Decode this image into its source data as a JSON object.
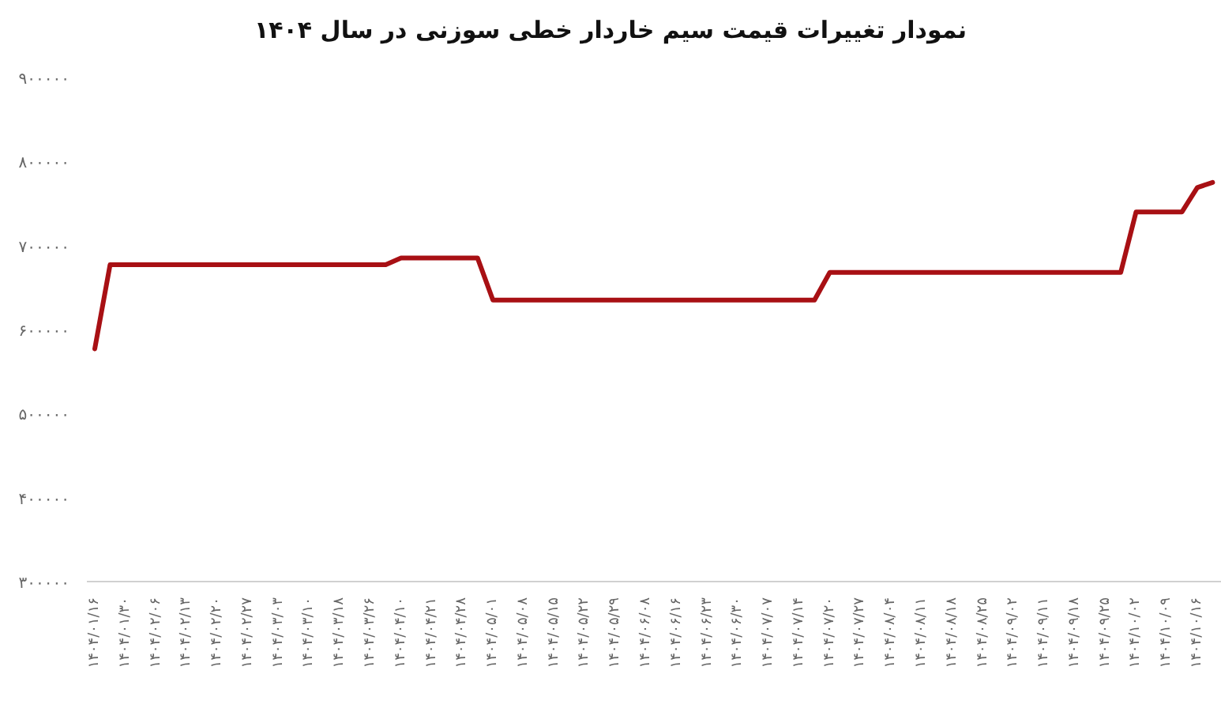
{
  "chart_data": {
    "type": "line",
    "title": "نمودار تغییرات قیمت سیم خاردار خطی سوزنی در سال ۱۴۰۴",
    "categories": [
      "۱۴۰۴/۰۱/۱۶",
      null,
      "۱۴۰۴/۰۱/۳۰",
      null,
      "۱۴۰۴/۰۲/۰۶",
      null,
      "۱۴۰۴/۰۲/۱۳",
      null,
      "۱۴۰۴/۰۲/۲۰",
      null,
      "۱۴۰۴/۰۲/۲۷",
      null,
      "۱۴۰۴/۰۳/۰۳",
      null,
      "۱۴۰۴/۰۳/۱۰",
      null,
      "۱۴۰۴/۰۳/۱۸",
      null,
      "۱۴۰۴/۰۳/۲۶",
      null,
      "۱۴۰۴/۰۴/۱۰",
      null,
      "۱۴۰۴/۰۴/۲۱",
      null,
      "۱۴۰۴/۰۴/۲۸",
      null,
      "۱۴۰۴/۰۵/۰۱",
      null,
      "۱۴۰۴/۰۵/۰۸",
      null,
      "۱۴۰۴/۰۵/۱۵",
      null,
      "۱۴۰۴/۰۵/۲۲",
      null,
      "۱۴۰۴/۰۵/۲۹",
      null,
      "۱۴۰۴/۰۶/۰۸",
      null,
      "۱۴۰۴/۰۶/۱۶",
      null,
      "۱۴۰۴/۰۶/۲۳",
      null,
      "۱۴۰۴/۰۶/۳۰",
      null,
      "۱۴۰۴/۰۷/۰۷",
      null,
      "۱۴۰۴/۰۷/۱۴",
      null,
      "۱۴۰۴/۰۷/۲۰",
      null,
      "۱۴۰۴/۰۷/۲۷",
      null,
      "۱۴۰۴/۰۸/۰۴",
      null,
      "۱۴۰۴/۰۸/۱۱",
      null,
      "۱۴۰۴/۰۸/۱۸",
      null,
      "۱۴۰۴/۰۸/۲۵",
      null,
      "۱۴۰۴/۰۹/۰۲",
      null,
      "۱۴۰۴/۰۹/۱۱",
      null,
      "۱۴۰۴/۰۹/۱۸",
      null,
      "۱۴۰۴/۰۹/۲۵",
      null,
      "۱۴۰۴/۱۰/۰۲",
      null,
      "۱۴۰۴/۱۰/۰۹",
      null,
      "۱۴۰۴/۱۰/۱۶",
      null
    ],
    "series": [
      {
        "color": "#a81014",
        "values": [
          577000,
          677000,
          677000,
          677000,
          677000,
          677000,
          677000,
          677000,
          677000,
          677000,
          677000,
          677000,
          677000,
          677000,
          677000,
          677000,
          677000,
          677000,
          677000,
          677000,
          685000,
          685000,
          685000,
          685000,
          685000,
          685000,
          635000,
          635000,
          635000,
          635000,
          635000,
          635000,
          635000,
          635000,
          635000,
          635000,
          635000,
          635000,
          635000,
          635000,
          635000,
          635000,
          635000,
          635000,
          635000,
          635000,
          635000,
          635000,
          668000,
          668000,
          668000,
          668000,
          668000,
          668000,
          668000,
          668000,
          668000,
          668000,
          668000,
          668000,
          668000,
          668000,
          668000,
          668000,
          668000,
          668000,
          668000,
          668000,
          740000,
          740000,
          740000,
          740000,
          769000,
          775000
        ]
      }
    ],
    "ylim": [
      300000,
      900000
    ],
    "yticks": [
      {
        "value": 300000,
        "label": "۳۰۰۰۰۰"
      },
      {
        "value": 400000,
        "label": "۴۰۰۰۰۰"
      },
      {
        "value": 500000,
        "label": "۵۰۰۰۰۰"
      },
      {
        "value": 600000,
        "label": "۶۰۰۰۰۰"
      },
      {
        "value": 700000,
        "label": "۷۰۰۰۰۰"
      },
      {
        "value": 800000,
        "label": "۸۰۰۰۰۰"
      },
      {
        "value": 900000,
        "label": "۹۰۰۰۰۰"
      }
    ]
  }
}
